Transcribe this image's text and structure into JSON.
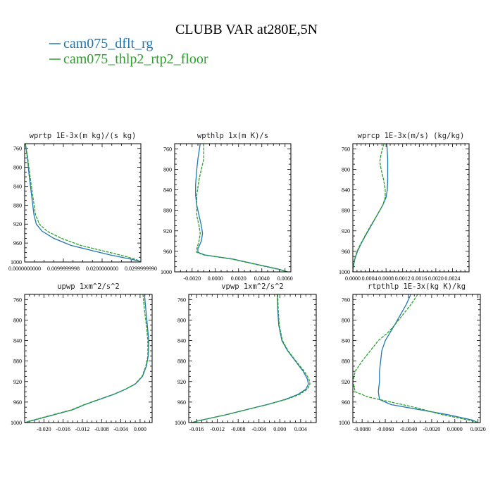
{
  "figure": {
    "title": "CLUBB VAR at280E,5N",
    "colors": {
      "dflt": "#1f77b4",
      "floor": "#2ca02c"
    },
    "legend": [
      {
        "label": "cam075_dflt_rg",
        "color": "#1f77b4",
        "dash": false
      },
      {
        "label": "cam075_thlp2_rtp2_floor",
        "color": "#2ca02c",
        "dash": true
      }
    ],
    "yticks": [
      "760",
      "800",
      "840",
      "880",
      "920",
      "960",
      "1000"
    ]
  },
  "chart_data": [
    {
      "type": "line",
      "title": "wprtp  1E-3x(m kg)/(s kg)",
      "xlim": [
        0,
        0.03
      ],
      "ylim": [
        750,
        1000
      ],
      "y_inverted": true,
      "xticks": [
        {
          "v": 0.0,
          "label": "0.0000000000"
        },
        {
          "v": 0.01,
          "label": "0.0099999998"
        },
        {
          "v": 0.02,
          "label": "0.0200000000"
        },
        {
          "v": 0.03,
          "label": "0.0299999990"
        }
      ],
      "series": [
        {
          "key": "dflt",
          "dash": false,
          "y": [
            750,
            780,
            820,
            860,
            900,
            920,
            935,
            950,
            965,
            975,
            985,
            990,
            995,
            998,
            1000
          ],
          "x": [
            0.0002,
            0.0007,
            0.0012,
            0.0018,
            0.0024,
            0.003,
            0.0045,
            0.0075,
            0.012,
            0.017,
            0.022,
            0.025,
            0.028,
            0.0295,
            0.0298
          ]
        },
        {
          "key": "floor",
          "dash": true,
          "y": [
            750,
            780,
            820,
            860,
            900,
            920,
            935,
            950,
            965,
            975,
            985,
            990,
            995,
            998,
            1000
          ],
          "x": [
            0.0002,
            0.0008,
            0.0014,
            0.0021,
            0.0028,
            0.0038,
            0.0058,
            0.0095,
            0.0145,
            0.0195,
            0.0245,
            0.0268,
            0.0288,
            0.0296,
            0.0298
          ]
        }
      ]
    },
    {
      "type": "line",
      "title": "wpthlp  1x(m K)/s",
      "xlim": [
        -0.0035,
        0.0065
      ],
      "ylim": [
        750,
        1000
      ],
      "y_inverted": true,
      "xticks": [
        {
          "v": -0.002,
          "label": "-0.0020"
        },
        {
          "v": 0.0,
          "label": "0.0000"
        },
        {
          "v": 0.002,
          "label": "0.0020"
        },
        {
          "v": 0.004,
          "label": "0.0040"
        },
        {
          "v": 0.006,
          "label": "0.0060"
        }
      ],
      "series": [
        {
          "key": "dflt",
          "dash": false,
          "y": [
            750,
            780,
            800,
            830,
            850,
            870,
            890,
            910,
            925,
            940,
            955,
            962,
            967,
            975,
            985,
            995,
            1000
          ],
          "x": [
            -0.0013,
            -0.0015,
            -0.0016,
            -0.0017,
            -0.0017,
            -0.0016,
            -0.0014,
            -0.0012,
            -0.0011,
            -0.0012,
            -0.0015,
            -0.0015,
            -0.0009,
            0.0015,
            0.0035,
            0.0055,
            0.0062
          ]
        },
        {
          "key": "floor",
          "dash": true,
          "y": [
            750,
            780,
            800,
            820,
            850,
            870,
            890,
            910,
            925,
            940,
            955,
            962,
            967,
            975,
            985,
            995,
            1000
          ],
          "x": [
            -0.001,
            -0.001,
            -0.0012,
            -0.0014,
            -0.0016,
            -0.0016,
            -0.0016,
            -0.0014,
            -0.0013,
            -0.0014,
            -0.0016,
            -0.0016,
            -0.001,
            0.0014,
            0.0034,
            0.0054,
            0.0062
          ]
        }
      ]
    },
    {
      "type": "line",
      "title": "wprcp  1E-3x(m/s) (kg/kg)",
      "xlim": [
        0,
        0.0028
      ],
      "ylim": [
        750,
        1000
      ],
      "y_inverted": true,
      "xticks": [
        {
          "v": 0.0,
          "label": "0.0000"
        },
        {
          "v": 0.0004,
          "label": "0.0004"
        },
        {
          "v": 0.0008,
          "label": "0.0008"
        },
        {
          "v": 0.0012,
          "label": "0.0012"
        },
        {
          "v": 0.0016,
          "label": "0.0016"
        },
        {
          "v": 0.002,
          "label": "0.0020"
        },
        {
          "v": 0.0024,
          "label": "0.0024"
        }
      ],
      "series": [
        {
          "key": "dflt",
          "dash": false,
          "y": [
            750,
            780,
            800,
            820,
            840,
            855,
            870,
            890,
            910,
            930,
            945,
            960,
            975,
            990,
            1000
          ],
          "x": [
            0.00082,
            0.00084,
            0.00084,
            0.00084,
            0.00083,
            0.0008,
            0.00072,
            0.00058,
            0.00044,
            0.0003,
            0.0002,
            0.00011,
            5e-05,
            1e-05,
            0.0
          ]
        },
        {
          "key": "floor",
          "dash": true,
          "y": [
            750,
            770,
            785,
            800,
            820,
            840,
            855,
            870,
            890,
            910,
            930,
            945,
            960,
            975,
            990,
            1000
          ],
          "x": [
            0.00075,
            0.00068,
            0.00065,
            0.00068,
            0.00074,
            0.00078,
            0.00078,
            0.00072,
            0.00058,
            0.00043,
            0.00029,
            0.00019,
            0.0001,
            4e-05,
            1e-05,
            0.0
          ]
        }
      ]
    },
    {
      "type": "line",
      "title": "upwp  1xm^2/s^2",
      "xlim": [
        -0.024,
        0.0025
      ],
      "ylim": [
        750,
        1000
      ],
      "y_inverted": true,
      "xticks": [
        {
          "v": -0.02,
          "label": "-0.020"
        },
        {
          "v": -0.016,
          "label": "-0.016"
        },
        {
          "v": -0.012,
          "label": "-0.012"
        },
        {
          "v": -0.008,
          "label": "-0.008"
        },
        {
          "v": -0.004,
          "label": "-0.004"
        },
        {
          "v": 0.0,
          "label": "0.000"
        }
      ],
      "series": [
        {
          "key": "dflt",
          "dash": false,
          "y": [
            750,
            780,
            810,
            840,
            870,
            890,
            910,
            925,
            935,
            945,
            955,
            965,
            975,
            985,
            995,
            1000
          ],
          "x": [
            0.0009,
            0.0012,
            0.0015,
            0.0018,
            0.0017,
            0.0013,
            0.0005,
            -0.001,
            -0.003,
            -0.0055,
            -0.0085,
            -0.0115,
            -0.014,
            -0.018,
            -0.022,
            -0.024
          ]
        },
        {
          "key": "floor",
          "dash": true,
          "y": [
            750,
            780,
            810,
            840,
            870,
            890,
            910,
            925,
            935,
            945,
            955,
            965,
            975,
            985,
            995,
            1000
          ],
          "x": [
            0.0006,
            0.0009,
            0.0013,
            0.0016,
            0.0016,
            0.0012,
            0.0004,
            -0.0011,
            -0.0031,
            -0.0056,
            -0.0086,
            -0.0116,
            -0.0142,
            -0.0182,
            -0.0222,
            -0.024
          ]
        }
      ]
    },
    {
      "type": "line",
      "title": "vpwp  1xm^2/s^2",
      "xlim": [
        -0.0175,
        0.007
      ],
      "ylim": [
        750,
        1000
      ],
      "y_inverted": true,
      "xticks": [
        {
          "v": -0.016,
          "label": "-0.016"
        },
        {
          "v": -0.012,
          "label": "-0.012"
        },
        {
          "v": -0.008,
          "label": "-0.008"
        },
        {
          "v": -0.004,
          "label": "-0.004"
        },
        {
          "v": 0.0,
          "label": "0.000"
        },
        {
          "v": 0.004,
          "label": "0.004"
        }
      ],
      "series": [
        {
          "key": "dflt",
          "dash": false,
          "y": [
            750,
            780,
            810,
            840,
            860,
            880,
            900,
            915,
            925,
            935,
            945,
            955,
            965,
            975,
            985,
            995,
            1000
          ],
          "x": [
            -0.0005,
            -0.0004,
            -0.0002,
            0.0004,
            0.0015,
            0.003,
            0.0045,
            0.0053,
            0.0055,
            0.005,
            0.0035,
            0.001,
            -0.0025,
            -0.0065,
            -0.0105,
            -0.015,
            -0.017
          ]
        },
        {
          "key": "floor",
          "dash": true,
          "y": [
            750,
            780,
            810,
            840,
            860,
            880,
            900,
            915,
            925,
            935,
            945,
            955,
            965,
            975,
            985,
            995,
            1000
          ],
          "x": [
            -0.0004,
            -0.0003,
            -0.0001,
            0.0005,
            0.0016,
            0.0031,
            0.0047,
            0.0056,
            0.0058,
            0.0053,
            0.0038,
            0.0012,
            -0.0024,
            -0.0064,
            -0.0104,
            -0.015,
            -0.017
          ]
        }
      ]
    },
    {
      "type": "line",
      "title": "rtpthlp  1E-3x(kg K)/kg",
      "xlim": [
        -0.0088,
        0.0022
      ],
      "ylim": [
        750,
        1000
      ],
      "y_inverted": true,
      "xticks": [
        {
          "v": -0.008,
          "label": "-0.0080"
        },
        {
          "v": -0.006,
          "label": "-0.0060"
        },
        {
          "v": -0.004,
          "label": "-0.0040"
        },
        {
          "v": -0.002,
          "label": "-0.0020"
        },
        {
          "v": 0.0,
          "label": "0.0000"
        },
        {
          "v": 0.002,
          "label": "0.0020"
        }
      ],
      "series": [
        {
          "key": "dflt",
          "dash": false,
          "y": [
            750,
            770,
            790,
            810,
            825,
            840,
            860,
            880,
            900,
            920,
            940,
            955,
            965,
            975,
            985,
            995,
            1000
          ],
          "x": [
            -0.0038,
            -0.0042,
            -0.0047,
            -0.0052,
            -0.0056,
            -0.006,
            -0.0063,
            -0.0064,
            -0.0065,
            -0.0065,
            -0.0066,
            -0.0065,
            -0.0055,
            -0.003,
            -0.0005,
            0.0015,
            0.002
          ]
        },
        {
          "key": "floor",
          "dash": true,
          "y": [
            750,
            770,
            790,
            810,
            825,
            840,
            860,
            880,
            900,
            920,
            940,
            950,
            960,
            970,
            985,
            995,
            1000
          ],
          "x": [
            -0.0032,
            -0.0038,
            -0.0045,
            -0.0052,
            -0.0058,
            -0.0066,
            -0.0073,
            -0.008,
            -0.0086,
            -0.0088,
            -0.0086,
            -0.0075,
            -0.0055,
            -0.0035,
            -0.001,
            0.0012,
            0.002
          ]
        }
      ]
    }
  ]
}
